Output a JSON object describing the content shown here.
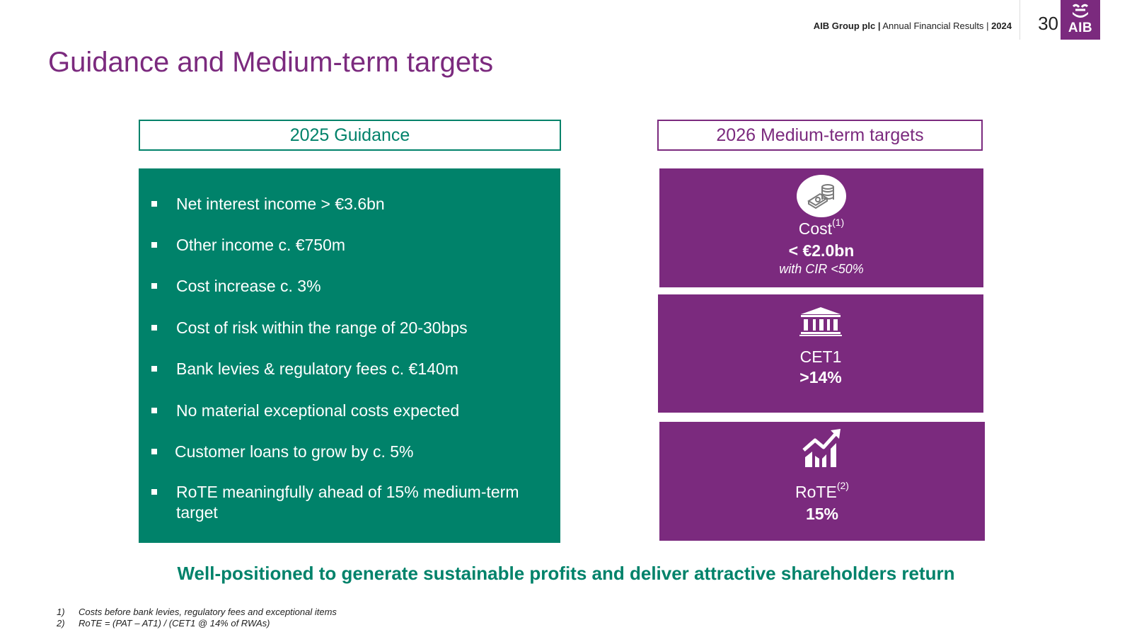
{
  "header": {
    "company": "AIB Group plc",
    "separator": "|",
    "report": "Annual Financial Results",
    "separator2": "|",
    "year": "2024",
    "page_number": "30",
    "logo_text": "AIB"
  },
  "title": "Guidance and Medium-term targets",
  "guidance": {
    "heading": "2025 Guidance",
    "items": [
      "Net interest income > €3.6bn",
      "Other income c. €750m",
      "Cost increase c. 3%",
      "Cost of risk within the range of 20-30bps",
      "Bank levies & regulatory fees c. €140m",
      "No material exceptional costs expected",
      "Customer loans to grow by c. 5%",
      "RoTE meaningfully ahead of 15% medium-term target"
    ]
  },
  "targets": {
    "heading": "2026 Medium-term targets",
    "cost": {
      "label": "Cost",
      "sup": "(1)",
      "value": "< €2.0bn",
      "note": "with CIR <50%",
      "icon": "coins-icon"
    },
    "cet1": {
      "label": "CET1",
      "value": ">14%",
      "icon": "bank-icon"
    },
    "rote": {
      "label": "RoTE",
      "sup": "(2)",
      "value": "15%",
      "icon": "growth-chart-icon"
    }
  },
  "tagline": "Well-positioned to generate sustainable profits and deliver attractive shareholders return",
  "footnotes": [
    {
      "num": "1)",
      "text": "Costs before bank levies, regulatory fees and exceptional items"
    },
    {
      "num": "2)",
      "text": "RoTE = (PAT – AT1) / (CET1 @ 14% of RWAs)"
    }
  ],
  "colors": {
    "green": "#00826a",
    "purple": "#7b2a7e"
  }
}
